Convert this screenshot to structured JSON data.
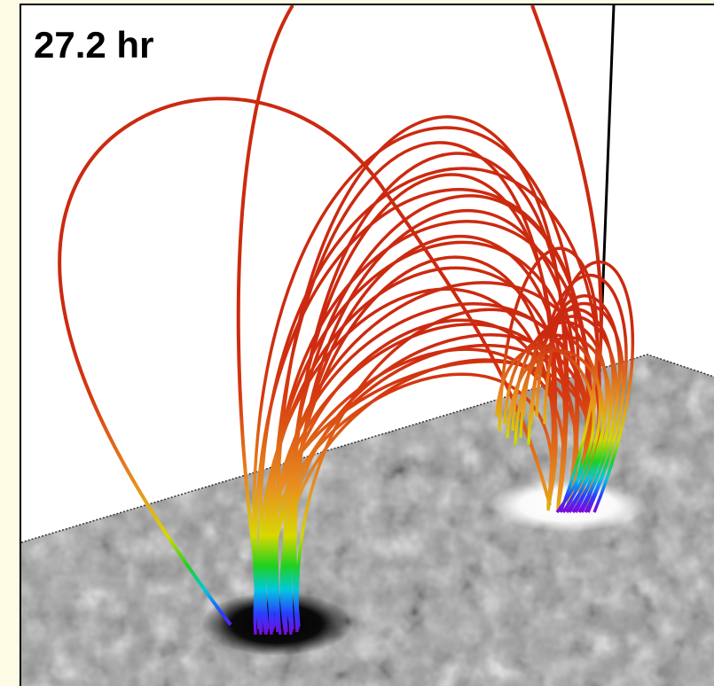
{
  "label": "27.2 hr"
}
